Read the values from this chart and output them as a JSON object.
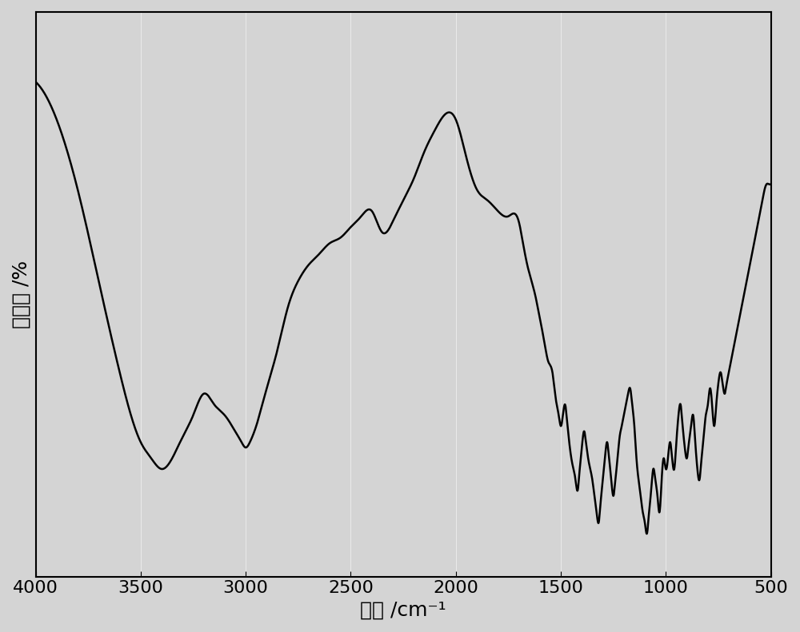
{
  "title": "",
  "xlabel": "波数 /cm⁻¹",
  "ylabel": "透光率 /%",
  "xlim": [
    4000,
    500
  ],
  "background_color": "#d4d4d4",
  "plot_bg_color": "#d4d4d4",
  "line_color": "#000000",
  "line_width": 1.8,
  "xlabel_fontsize": 18,
  "ylabel_fontsize": 18,
  "tick_fontsize": 16,
  "xticks": [
    4000,
    3500,
    3000,
    2500,
    2000,
    1500,
    1000,
    500
  ],
  "grid": true
}
